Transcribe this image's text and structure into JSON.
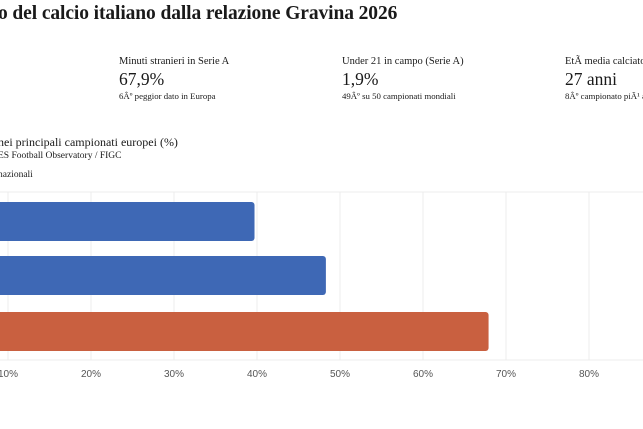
{
  "header": {
    "title": "o del calcio italiano dalla relazione Gravina 2026"
  },
  "stats": [
    {
      "label": "Minuti stranieri in Serie A",
      "value": "67,9%",
      "note": "6Âº peggior dato in Europa"
    },
    {
      "label": "Under 21 in campo (Serie A)",
      "value": "1,9%",
      "note": "49Âº su 50 campionati mondiali"
    },
    {
      "label": "EtÃ  media calciatori",
      "value": "27 anni",
      "note": "8Âº campionato piÃ¹ an"
    }
  ],
  "chart": {
    "title": "nei principali campionati europei (%)",
    "source": "ES Football Observatory / FIGC",
    "legend": "nazionali"
  },
  "colors": {
    "blue": "#3e68b5",
    "orange": "#c96040",
    "grid": "#ececec"
  },
  "chart_data": {
    "type": "bar",
    "orientation": "horizontal",
    "categories": [
      "",
      "",
      ""
    ],
    "values": [
      39.7,
      48.3,
      67.9
    ],
    "bar_colors": [
      "#3e68b5",
      "#3e68b5",
      "#c96040"
    ],
    "x_ticks": [
      "10%",
      "20%",
      "30%",
      "40%",
      "50%",
      "60%",
      "70%",
      "80%"
    ],
    "xlim": [
      0,
      90
    ],
    "grid": true
  }
}
